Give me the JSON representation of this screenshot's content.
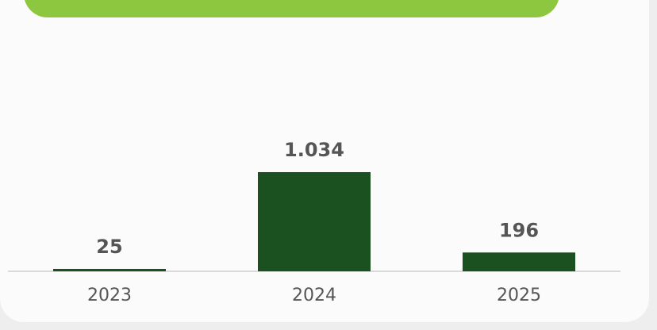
{
  "chart_data": {
    "type": "bar",
    "categories": [
      "2023",
      "2024",
      "2025"
    ],
    "values": [
      25,
      1034,
      196
    ],
    "value_labels": [
      "25",
      "1.034",
      "196"
    ],
    "color": "#1b5020"
  }
}
